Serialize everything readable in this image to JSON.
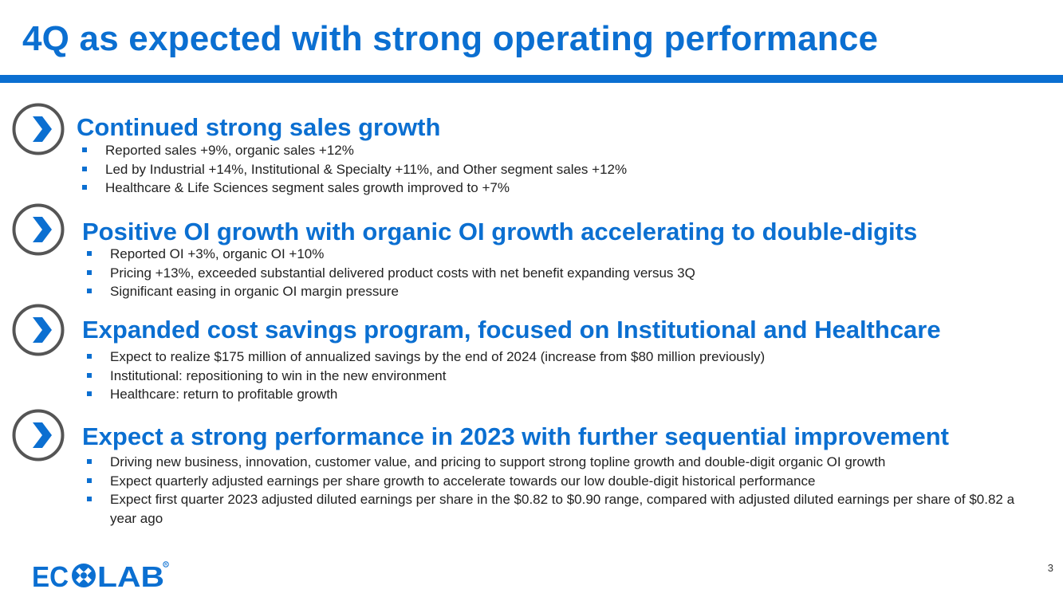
{
  "slide": {
    "title": "4Q as expected with strong operating performance",
    "page_number": "3",
    "logo_text": "ECOLAB",
    "accent_color": "#0b6fd1"
  },
  "sections": [
    {
      "icon": "chevron-right-icon",
      "title": "Continued strong sales growth",
      "bullets": [
        "Reported sales +9%, organic sales +12%",
        "Led by Industrial +14%, Institutional & Specialty +11%, and Other segment sales +12%",
        "Healthcare & Life Sciences segment sales growth improved to +7%"
      ]
    },
    {
      "icon": "chevron-right-icon",
      "title": "Positive OI growth with organic OI growth accelerating to double-digits",
      "bullets": [
        "Reported OI +3%, organic OI +10%",
        "Pricing +13%, exceeded substantial delivered product costs with net benefit expanding versus 3Q",
        "Significant easing in organic OI margin pressure"
      ]
    },
    {
      "icon": "chevron-right-icon",
      "title": "Expanded cost savings program, focused on Institutional and Healthcare",
      "bullets": [
        "Expect to realize $175 million of annualized savings by the end of 2024 (increase from $80 million previously)",
        "Institutional: repositioning to win in the new environment",
        "Healthcare: return to profitable growth"
      ]
    },
    {
      "icon": "chevron-right-icon",
      "title": "Expect a strong performance in 2023 with further sequential improvement",
      "bullets": [
        "Driving new business, innovation, customer value, and pricing to support strong topline growth and double-digit organic OI growth",
        "Expect quarterly adjusted earnings per share growth to accelerate towards our low double-digit historical performance",
        "Expect first quarter 2023 adjusted diluted earnings per share in the $0.82 to $0.90 range, compared with adjusted diluted earnings per share of $0.82 a year ago"
      ]
    }
  ]
}
